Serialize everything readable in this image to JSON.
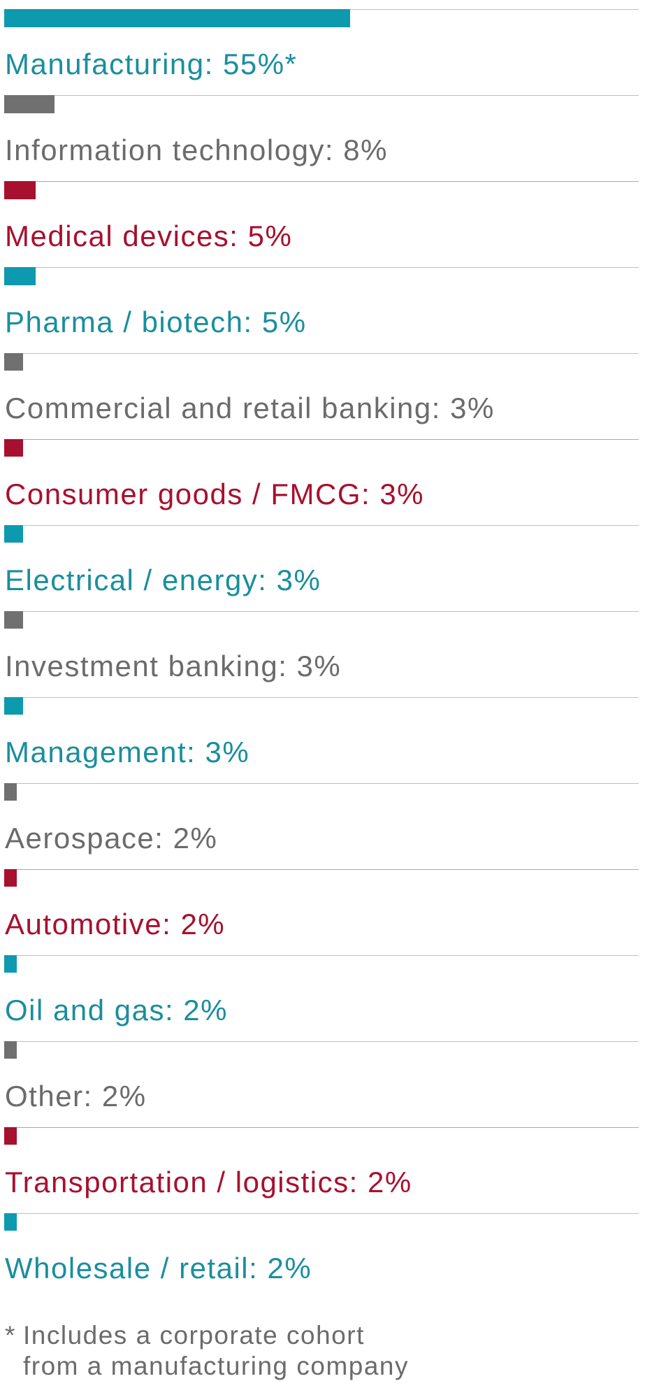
{
  "chart_data": {
    "type": "bar",
    "orientation": "horizontal",
    "xlim": [
      0,
      100
    ],
    "categories": [
      "Manufacturing",
      "Information technology",
      "Medical devices",
      "Pharma / biotech",
      "Commercial and retail banking",
      "Consumer goods / FMCG",
      "Electrical / energy",
      "Investment banking",
      "Management",
      "Aerospace",
      "Automotive",
      "Oil and gas",
      "Other",
      "Transportation / logistics",
      "Wholesale / retail"
    ],
    "values": [
      55,
      8,
      5,
      5,
      3,
      3,
      3,
      3,
      3,
      2,
      2,
      2,
      2,
      2,
      2
    ],
    "labels": [
      "Manufacturing: 55%*",
      "Information technology: 8%",
      "Medical devices: 5%",
      "Pharma / biotech: 5%",
      "Commercial and retail banking: 3%",
      "Consumer goods / FMCG: 3%",
      "Electrical / energy: 3%",
      "Investment banking: 3%",
      "Management: 3%",
      "Aerospace: 2%",
      "Automotive: 2%",
      "Oil and gas: 2%",
      "Other: 2%",
      "Transportation / logistics: 2%",
      "Wholesale / retail: 2%"
    ],
    "colors": [
      "#0e9aae",
      "#707070",
      "#a8102f",
      "#0e9aae",
      "#707070",
      "#a8102f",
      "#0e9aae",
      "#707070",
      "#0e9aae",
      "#707070",
      "#a8102f",
      "#0e9aae",
      "#707070",
      "#a8102f",
      "#0e9aae"
    ],
    "label_colors": [
      "#1a8e9e",
      "#6b6b6b",
      "#a8102f",
      "#1a8e9e",
      "#6b6b6b",
      "#a8102f",
      "#1a8e9e",
      "#6b6b6b",
      "#1a8e9e",
      "#6b6b6b",
      "#a8102f",
      "#1a8e9e",
      "#6b6b6b",
      "#a8102f",
      "#1a8e9e"
    ],
    "grid": false,
    "legend": "none"
  },
  "footnote": {
    "mark": "*",
    "line1": "Includes a corporate cohort",
    "line2": "from a manufacturing company"
  }
}
